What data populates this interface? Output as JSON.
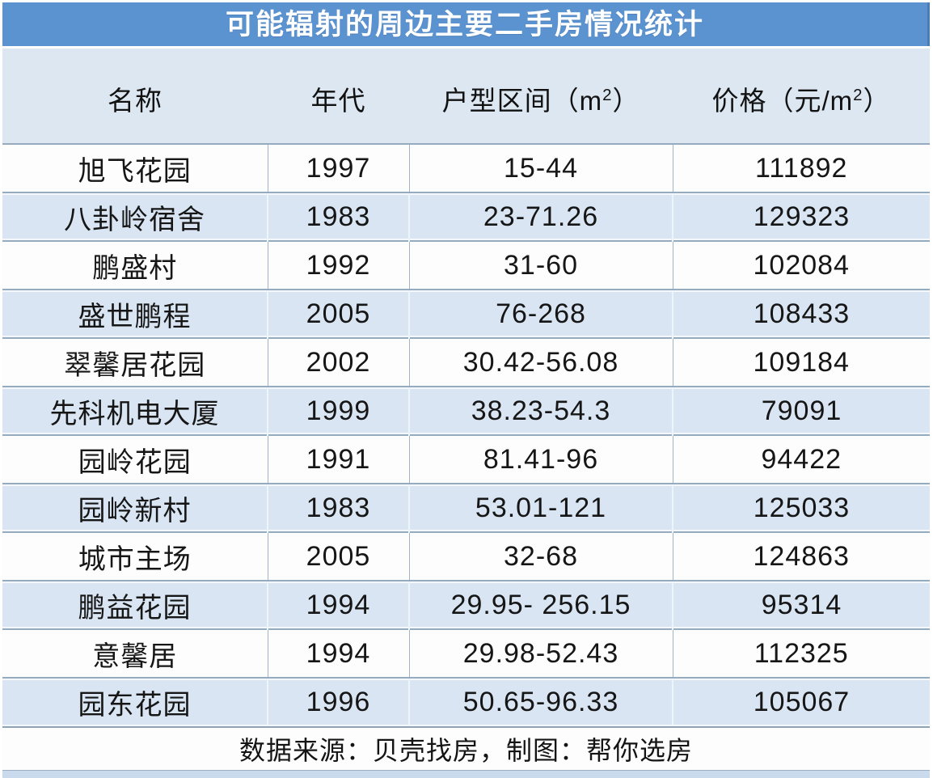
{
  "title": "可能辐射的周边主要二手房情况统计",
  "header_cells": {
    "name": "名称",
    "year": "年代",
    "range_pre": "户型区间（m",
    "range_sup": "2",
    "range_post": "）",
    "price_pre": "价格（元/m",
    "price_sup": "2",
    "price_post": "）"
  },
  "chart_data": {
    "type": "table",
    "title": "可能辐射的周边主要二手房情况统计",
    "columns": [
      "名称",
      "年代",
      "户型区间（m2）",
      "价格（元/m2）"
    ],
    "rows": [
      [
        "旭飞花园",
        "1997",
        "15-44",
        "111892"
      ],
      [
        "八卦岭宿舍",
        "1983",
        "23-71.26",
        "129323"
      ],
      [
        "鹏盛村",
        "1992",
        "31-60",
        "102084"
      ],
      [
        "盛世鹏程",
        "2005",
        "76-268",
        "108433"
      ],
      [
        "翠馨居花园",
        "2002",
        "30.42-56.08",
        "109184"
      ],
      [
        "先科机电大厦",
        "1999",
        "38.23-54.3",
        "79091"
      ],
      [
        "园岭花园",
        "1991",
        "81.41-96",
        "94422"
      ],
      [
        "园岭新村",
        "1983",
        "53.01-121",
        "125033"
      ],
      [
        "城市主场",
        "2005",
        "32-68",
        "124863"
      ],
      [
        "鹏益花园",
        "1994",
        "29.95- 256.15",
        "95314"
      ],
      [
        "意馨居",
        "1994",
        "29.98-52.43",
        "112325"
      ],
      [
        "园东花园",
        "1996",
        "50.65-96.33",
        "105067"
      ]
    ],
    "source_note": "数据来源：贝壳找房，制图：帮你选房"
  },
  "footer": {
    "note": "数据来源：贝壳找房，制图：帮你选房"
  },
  "colors": {
    "title_bar": "#5b93d1",
    "title_text": "#ffffff",
    "header_bg": "#dce7f2",
    "row_bg": "#fdfdfd",
    "row_alt_bg": "#d9e5f2",
    "border": "#8fa3b5",
    "bottom_strip": "#c9daec"
  }
}
